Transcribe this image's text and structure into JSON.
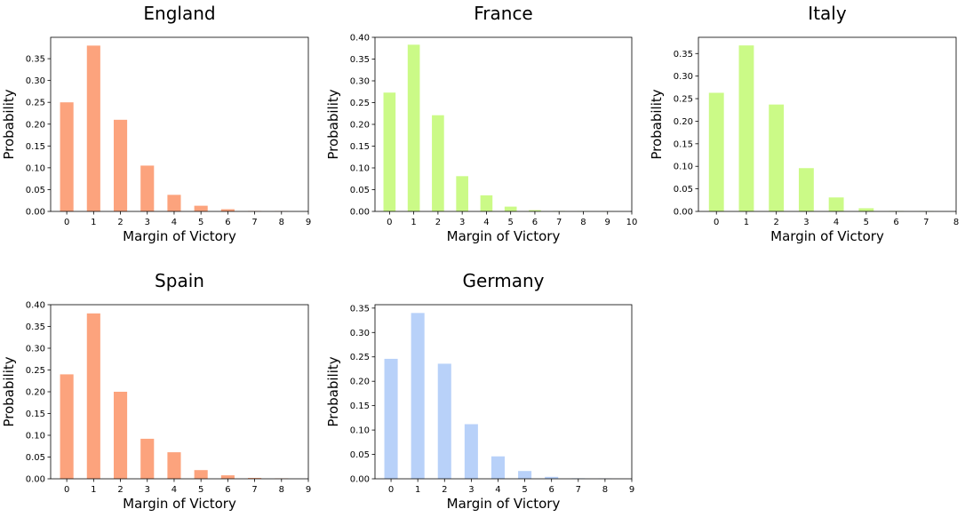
{
  "chart_data": [
    {
      "type": "bar",
      "title": "England",
      "xlabel": "Margin of Victory",
      "ylabel": "Probability",
      "color": "#fca37d",
      "categories": [
        "0",
        "1",
        "2",
        "3",
        "4",
        "5",
        "6",
        "7",
        "8"
      ],
      "values": [
        0.25,
        0.38,
        0.21,
        0.105,
        0.038,
        0.013,
        0.005,
        0.001,
        0.0005
      ],
      "xticks": [
        "0",
        "1",
        "2",
        "3",
        "4",
        "5",
        "6",
        "7",
        "8",
        "9"
      ],
      "yticks": [
        "0.00",
        "0.05",
        "0.10",
        "0.15",
        "0.20",
        "0.25",
        "0.30",
        "0.35"
      ],
      "xlim": [
        -0.6,
        9
      ],
      "ylim": [
        0,
        0.399
      ],
      "grid": false
    },
    {
      "type": "bar",
      "title": "France",
      "xlabel": "Margin of Victory",
      "ylabel": "Probability",
      "color": "#cbfa87",
      "categories": [
        "0",
        "1",
        "2",
        "3",
        "4",
        "5",
        "6",
        "7",
        "8",
        "9"
      ],
      "values": [
        0.273,
        0.383,
        0.221,
        0.081,
        0.037,
        0.011,
        0.003,
        0.001,
        0.0005,
        0.0003
      ],
      "xticks": [
        "0",
        "1",
        "2",
        "3",
        "4",
        "5",
        "6",
        "7",
        "8",
        "9",
        "10"
      ],
      "yticks": [
        "0.00",
        "0.05",
        "0.10",
        "0.15",
        "0.20",
        "0.25",
        "0.30",
        "0.35",
        "0.40"
      ],
      "xlim": [
        -0.6,
        10
      ],
      "ylim": [
        0,
        0.4
      ],
      "grid": false
    },
    {
      "type": "bar",
      "title": "Italy",
      "xlabel": "Margin of Victory",
      "ylabel": "Probability",
      "color": "#cbfa87",
      "categories": [
        "0",
        "1",
        "2",
        "3",
        "4",
        "5",
        "6",
        "7"
      ],
      "values": [
        0.263,
        0.368,
        0.237,
        0.096,
        0.031,
        0.007,
        0.001,
        0.0005
      ],
      "xticks": [
        "0",
        "1",
        "2",
        "3",
        "4",
        "5",
        "6",
        "7",
        "8"
      ],
      "yticks": [
        "0.00",
        "0.05",
        "0.10",
        "0.15",
        "0.20",
        "0.25",
        "0.30",
        "0.35"
      ],
      "xlim": [
        -0.6,
        8
      ],
      "ylim": [
        0,
        0.386
      ],
      "grid": false
    },
    {
      "type": "bar",
      "title": "Spain",
      "xlabel": "Margin of Victory",
      "ylabel": "Probability",
      "color": "#fca37d",
      "categories": [
        "0",
        "1",
        "2",
        "3",
        "4",
        "5",
        "6",
        "7",
        "8"
      ],
      "values": [
        0.24,
        0.38,
        0.2,
        0.092,
        0.061,
        0.02,
        0.008,
        0.002,
        0.001
      ],
      "xticks": [
        "0",
        "1",
        "2",
        "3",
        "4",
        "5",
        "6",
        "7",
        "8",
        "9"
      ],
      "yticks": [
        "0.00",
        "0.05",
        "0.10",
        "0.15",
        "0.20",
        "0.25",
        "0.30",
        "0.35",
        "0.40"
      ],
      "xlim": [
        -0.6,
        9
      ],
      "ylim": [
        0,
        0.4
      ],
      "grid": false
    },
    {
      "type": "bar",
      "title": "Germany",
      "xlabel": "Margin of Victory",
      "ylabel": "Probability",
      "color": "#b8d1f9",
      "categories": [
        "0",
        "1",
        "2",
        "3",
        "4",
        "5",
        "6",
        "7",
        "8"
      ],
      "values": [
        0.246,
        0.34,
        0.236,
        0.112,
        0.046,
        0.016,
        0.004,
        0.001,
        0.0005
      ],
      "xticks": [
        "0",
        "1",
        "2",
        "3",
        "4",
        "5",
        "6",
        "7",
        "8",
        "9"
      ],
      "yticks": [
        "0.00",
        "0.05",
        "0.10",
        "0.15",
        "0.20",
        "0.25",
        "0.30",
        "0.35"
      ],
      "xlim": [
        -0.6,
        9
      ],
      "ylim": [
        0,
        0.357
      ],
      "grid": false
    }
  ]
}
